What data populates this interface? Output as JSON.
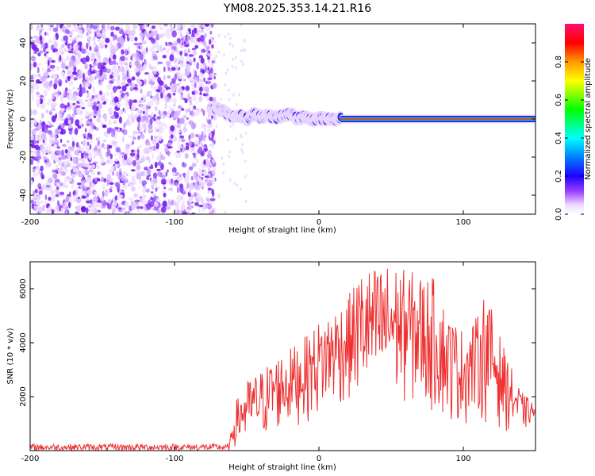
{
  "title": "YM08.2025.353.14.21.R16",
  "chart_data": [
    {
      "type": "heatmap",
      "xlabel": "Height of straight line (km)",
      "ylabel": "Frequency (Hz)",
      "xlim": [
        -200,
        150
      ],
      "ylim": [
        -50,
        50
      ],
      "xticks": [
        -200,
        -100,
        0,
        100
      ],
      "yticks": [
        -40,
        -20,
        0,
        20,
        40
      ],
      "noise_region_x": [
        -200,
        -72
      ],
      "line_profile": [
        {
          "x": -75,
          "f": 6.0
        },
        {
          "x": -70,
          "f": 5.0
        },
        {
          "x": -65,
          "f": 3.5
        },
        {
          "x": -60,
          "f": 1.5
        },
        {
          "x": -55,
          "f": 2.0
        },
        {
          "x": -50,
          "f": 0.0
        },
        {
          "x": -45,
          "f": 2.5
        },
        {
          "x": -40,
          "f": 1.0
        },
        {
          "x": -35,
          "f": 2.0
        },
        {
          "x": -30,
          "f": 0.5
        },
        {
          "x": -25,
          "f": 1.5
        },
        {
          "x": -20,
          "f": 2.5
        },
        {
          "x": -15,
          "f": 0.5
        },
        {
          "x": -10,
          "f": 1.0
        },
        {
          "x": -5,
          "f": -0.5
        },
        {
          "x": 0,
          "f": 0.5
        },
        {
          "x": 5,
          "f": 0.0
        },
        {
          "x": 10,
          "f": 0.0
        },
        {
          "x": 15,
          "f": 0.0
        },
        {
          "x": 150,
          "f": 0.0
        }
      ],
      "steady_line_start_x": 15,
      "colorbar": {
        "label": "Normalized spectral amplitude",
        "ticks": [
          0.0,
          0.2,
          0.4,
          0.6,
          0.8
        ],
        "tick_labels": [
          "0.0",
          "0.2",
          "0.4",
          "0.6",
          "0.8"
        ],
        "range": [
          0,
          1
        ],
        "colors": [
          "#ffffff",
          "#e6ccff",
          "#8000ff",
          "#0000ff",
          "#00ffff",
          "#00ff00",
          "#ffff00",
          "#ff8000",
          "#ff0000",
          "#ff0066"
        ]
      }
    },
    {
      "type": "line",
      "xlabel": "Height of straight line (km)",
      "ylabel": "SNR (10 * v/v)",
      "xlim": [
        -200,
        150
      ],
      "ylim": [
        0,
        7000
      ],
      "xticks": [
        -200,
        -100,
        0,
        100
      ],
      "yticks": [
        2000,
        4000,
        6000
      ],
      "color": "#ee3030",
      "envelope": {
        "x": [
          -200,
          -62,
          -58,
          -50,
          -40,
          -30,
          -20,
          -10,
          0,
          10,
          20,
          30,
          40,
          50,
          60,
          70,
          80,
          90,
          100,
          110,
          115,
          120,
          130,
          140,
          150
        ],
        "min": [
          0,
          0,
          100,
          150,
          300,
          600,
          800,
          1000,
          1200,
          1500,
          1700,
          1800,
          1500,
          1600,
          1700,
          1400,
          1300,
          1000,
          900,
          1200,
          1000,
          900,
          700,
          600,
          1100
        ],
        "max": [
          250,
          250,
          1800,
          2600,
          3000,
          3500,
          3800,
          4200,
          4800,
          5300,
          5700,
          6800,
          6800,
          7000,
          6700,
          6600,
          6400,
          5000,
          4500,
          5000,
          6000,
          5200,
          3500,
          2200,
          1700
        ]
      }
    }
  ]
}
